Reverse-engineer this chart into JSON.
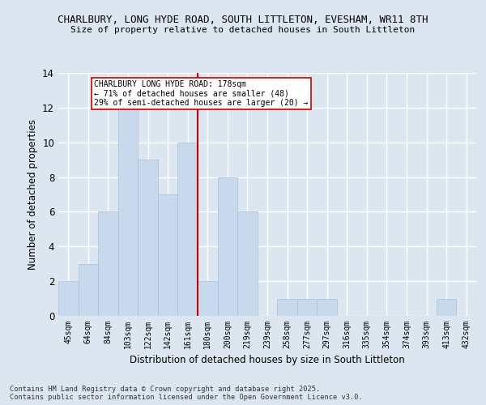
{
  "title_line1": "CHARLBURY, LONG HYDE ROAD, SOUTH LITTLETON, EVESHAM, WR11 8TH",
  "title_line2": "Size of property relative to detached houses in South Littleton",
  "xlabel": "Distribution of detached houses by size in South Littleton",
  "ylabel": "Number of detached properties",
  "categories": [
    "45sqm",
    "64sqm",
    "84sqm",
    "103sqm",
    "122sqm",
    "142sqm",
    "161sqm",
    "180sqm",
    "200sqm",
    "219sqm",
    "239sqm",
    "258sqm",
    "277sqm",
    "297sqm",
    "316sqm",
    "335sqm",
    "354sqm",
    "374sqm",
    "393sqm",
    "413sqm",
    "432sqm"
  ],
  "values": [
    2,
    3,
    6,
    12,
    9,
    7,
    10,
    2,
    8,
    6,
    0,
    1,
    1,
    1,
    0,
    0,
    0,
    0,
    0,
    1,
    0
  ],
  "bar_color": "#c9d9ed",
  "bar_edge_color": "#aabfd4",
  "vline_index": 7,
  "vline_color": "#cc0000",
  "annotation_text": "CHARLBURY LONG HYDE ROAD: 178sqm\n← 71% of detached houses are smaller (48)\n29% of semi-detached houses are larger (20) →",
  "annotation_box_color": "#ffffff",
  "annotation_box_edge": "#cc0000",
  "ylim": [
    0,
    14
  ],
  "yticks": [
    0,
    2,
    4,
    6,
    8,
    10,
    12,
    14
  ],
  "background_color": "#dce6f0",
  "grid_color": "#ffffff",
  "footer_line1": "Contains HM Land Registry data © Crown copyright and database right 2025.",
  "footer_line2": "Contains public sector information licensed under the Open Government Licence v3.0."
}
